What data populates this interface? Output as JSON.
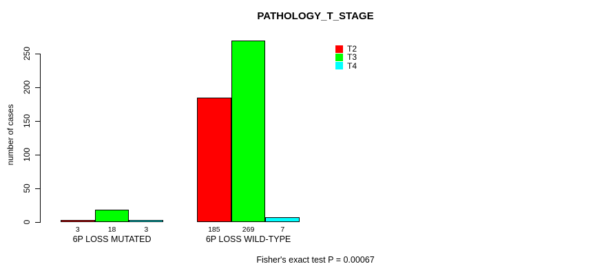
{
  "chart_data": {
    "type": "bar",
    "title": "PATHOLOGY_T_STAGE",
    "ylabel": "number of cases",
    "xlabel": "",
    "ylim": [
      0,
      250
    ],
    "yticks": [
      0,
      50,
      100,
      150,
      200,
      250
    ],
    "grid": false,
    "legend_position": "top-right",
    "categories": [
      "6P LOSS MUTATED",
      "6P LOSS WILD-TYPE"
    ],
    "series": [
      {
        "name": "T2",
        "color": "#ff0000",
        "values": [
          3,
          185
        ]
      },
      {
        "name": "T3",
        "color": "#00ff00",
        "values": [
          18,
          269
        ]
      },
      {
        "name": "T4",
        "color": "#00ffff",
        "values": [
          3,
          7
        ]
      }
    ],
    "bar_value_labels": [
      [
        "3",
        "18",
        "3"
      ],
      [
        "185",
        "269",
        "7"
      ]
    ],
    "annotation": "Fisher's exact test P = 0.00067"
  }
}
